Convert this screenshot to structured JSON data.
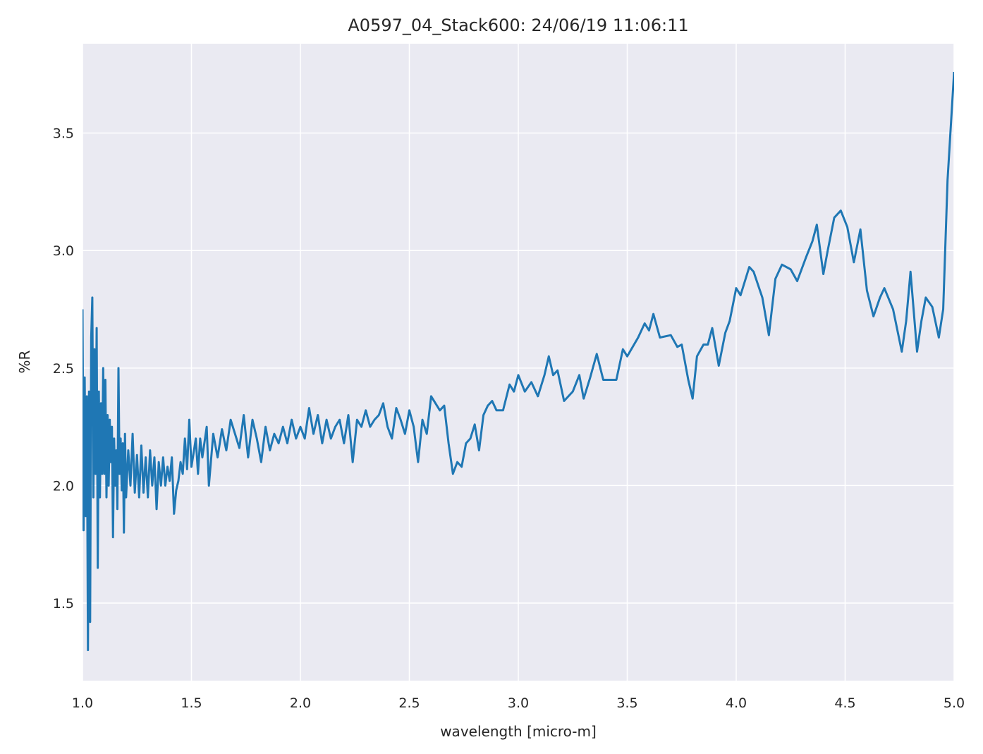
{
  "chart_data": {
    "type": "line",
    "title": "A0597_04_Stack600:  24/06/19 11:06:11",
    "xlabel": "wavelength [micro-m]",
    "ylabel": "%R",
    "xlim": [
      1.0,
      5.0
    ],
    "ylim": [
      1.17,
      3.88
    ],
    "xticks": [
      {
        "value": 1.0,
        "label": "1.0"
      },
      1.5,
      {
        "value": 2.0,
        "label": "2.0"
      },
      2.5,
      {
        "value": 3.0,
        "label": "3.0"
      },
      3.5,
      {
        "value": 4.0,
        "label": "4.0"
      },
      4.5,
      {
        "value": 5.0,
        "label": "5.0"
      }
    ],
    "yticks": [
      1.5,
      {
        "value": 2.0,
        "label": "2.0"
      },
      2.5,
      {
        "value": 3.0,
        "label": "3.0"
      },
      3.5
    ],
    "grid": true,
    "series": [
      {
        "color": "#1f77b4",
        "x": [
          1.0,
          1.005,
          1.01,
          1.015,
          1.02,
          1.025,
          1.03,
          1.035,
          1.04,
          1.045,
          1.05,
          1.055,
          1.06,
          1.065,
          1.07,
          1.075,
          1.08,
          1.085,
          1.09,
          1.095,
          1.1,
          1.105,
          1.11,
          1.115,
          1.12,
          1.125,
          1.13,
          1.135,
          1.14,
          1.145,
          1.15,
          1.155,
          1.16,
          1.165,
          1.17,
          1.175,
          1.18,
          1.185,
          1.19,
          1.195,
          1.2,
          1.21,
          1.22,
          1.23,
          1.24,
          1.25,
          1.26,
          1.27,
          1.28,
          1.29,
          1.3,
          1.31,
          1.32,
          1.33,
          1.34,
          1.35,
          1.36,
          1.37,
          1.38,
          1.39,
          1.4,
          1.41,
          1.42,
          1.43,
          1.44,
          1.45,
          1.46,
          1.47,
          1.48,
          1.49,
          1.5,
          1.52,
          1.53,
          1.54,
          1.55,
          1.57,
          1.58,
          1.6,
          1.62,
          1.64,
          1.66,
          1.68,
          1.7,
          1.72,
          1.74,
          1.76,
          1.78,
          1.8,
          1.82,
          1.84,
          1.86,
          1.88,
          1.9,
          1.92,
          1.94,
          1.96,
          1.98,
          2.0,
          2.02,
          2.04,
          2.06,
          2.08,
          2.1,
          2.12,
          2.14,
          2.16,
          2.18,
          2.2,
          2.22,
          2.24,
          2.26,
          2.28,
          2.3,
          2.32,
          2.34,
          2.36,
          2.38,
          2.4,
          2.42,
          2.44,
          2.46,
          2.48,
          2.5,
          2.52,
          2.54,
          2.56,
          2.58,
          2.6,
          2.62,
          2.64,
          2.66,
          2.68,
          2.7,
          2.72,
          2.74,
          2.76,
          2.78,
          2.8,
          2.82,
          2.84,
          2.86,
          2.88,
          2.9,
          2.93,
          2.96,
          2.98,
          3.0,
          3.03,
          3.06,
          3.09,
          3.12,
          3.14,
          3.16,
          3.18,
          3.21,
          3.25,
          3.28,
          3.3,
          3.33,
          3.36,
          3.39,
          3.45,
          3.48,
          3.5,
          3.55,
          3.58,
          3.6,
          3.62,
          3.65,
          3.7,
          3.73,
          3.75,
          3.78,
          3.8,
          3.82,
          3.85,
          3.87,
          3.89,
          3.92,
          3.95,
          3.97,
          4.0,
          4.02,
          4.06,
          4.08,
          4.12,
          4.15,
          4.18,
          4.21,
          4.25,
          4.28,
          4.32,
          4.35,
          4.37,
          4.4,
          4.42,
          4.45,
          4.48,
          4.51,
          4.54,
          4.57,
          4.6,
          4.63,
          4.66,
          4.68,
          4.72,
          4.76,
          4.78,
          4.8,
          4.83,
          4.85,
          4.87,
          4.9,
          4.93,
          4.95,
          4.97,
          5.0
        ],
        "values": [
          2.75,
          1.81,
          2.46,
          1.87,
          2.38,
          1.3,
          2.4,
          1.42,
          2.63,
          2.8,
          1.95,
          2.58,
          2.05,
          2.67,
          1.65,
          2.4,
          1.95,
          2.35,
          2.05,
          2.5,
          2.05,
          2.45,
          1.95,
          2.3,
          2.0,
          2.28,
          2.1,
          2.25,
          1.78,
          2.2,
          2.0,
          2.15,
          1.9,
          2.5,
          2.05,
          2.2,
          1.98,
          2.18,
          1.8,
          2.22,
          1.95,
          2.15,
          2.0,
          2.22,
          1.97,
          2.13,
          1.95,
          2.17,
          1.97,
          2.12,
          1.95,
          2.15,
          2.0,
          2.12,
          1.9,
          2.1,
          2.0,
          2.12,
          2.0,
          2.08,
          2.02,
          2.12,
          1.88,
          1.98,
          2.02,
          2.1,
          2.05,
          2.2,
          2.07,
          2.28,
          2.08,
          2.2,
          2.05,
          2.2,
          2.12,
          2.25,
          2.0,
          2.22,
          2.12,
          2.24,
          2.15,
          2.28,
          2.22,
          2.16,
          2.3,
          2.12,
          2.28,
          2.2,
          2.1,
          2.25,
          2.15,
          2.22,
          2.18,
          2.25,
          2.18,
          2.28,
          2.2,
          2.25,
          2.2,
          2.33,
          2.22,
          2.3,
          2.18,
          2.28,
          2.2,
          2.25,
          2.28,
          2.18,
          2.3,
          2.1,
          2.28,
          2.25,
          2.32,
          2.25,
          2.28,
          2.3,
          2.35,
          2.25,
          2.2,
          2.33,
          2.28,
          2.22,
          2.32,
          2.25,
          2.1,
          2.28,
          2.22,
          2.38,
          2.35,
          2.32,
          2.34,
          2.18,
          2.05,
          2.1,
          2.08,
          2.18,
          2.2,
          2.26,
          2.15,
          2.3,
          2.34,
          2.36,
          2.32,
          2.32,
          2.43,
          2.4,
          2.47,
          2.4,
          2.44,
          2.38,
          2.47,
          2.55,
          2.47,
          2.49,
          2.36,
          2.4,
          2.47,
          2.37,
          2.46,
          2.56,
          2.45,
          2.45,
          2.58,
          2.55,
          2.63,
          2.69,
          2.66,
          2.73,
          2.63,
          2.64,
          2.59,
          2.6,
          2.45,
          2.37,
          2.55,
          2.6,
          2.6,
          2.67,
          2.51,
          2.65,
          2.7,
          2.84,
          2.81,
          2.93,
          2.91,
          2.8,
          2.64,
          2.88,
          2.94,
          2.92,
          2.87,
          2.97,
          3.04,
          3.11,
          2.9,
          3.0,
          3.14,
          3.17,
          3.1,
          2.95,
          3.09,
          2.83,
          2.72,
          2.8,
          2.84,
          2.75,
          2.57,
          2.7,
          2.91,
          2.57,
          2.7,
          2.8,
          2.76,
          2.63,
          2.75,
          3.3,
          3.76
        ]
      }
    ]
  }
}
